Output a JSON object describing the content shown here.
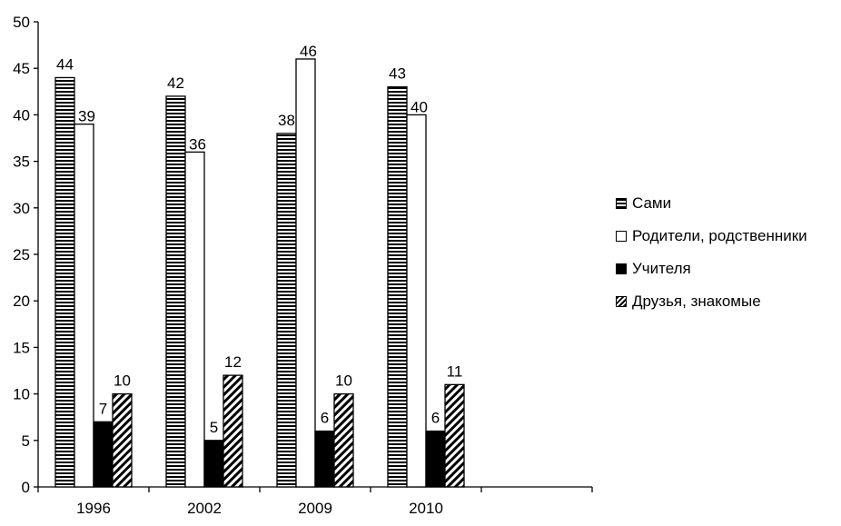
{
  "chart_data": {
    "type": "bar",
    "categories": [
      "1996",
      "2002",
      "2009",
      "2010",
      ""
    ],
    "series": [
      {
        "name": "Сами",
        "values": [
          44,
          42,
          38,
          43,
          null
        ],
        "pattern": "hstripe"
      },
      {
        "name": "Родители, родственники",
        "values": [
          39,
          36,
          46,
          40,
          null
        ],
        "pattern": "white"
      },
      {
        "name": "Учителя",
        "values": [
          7,
          5,
          6,
          6,
          null
        ],
        "pattern": "black"
      },
      {
        "name": "Друзья, знакомые",
        "values": [
          10,
          12,
          10,
          11,
          null
        ],
        "pattern": "diag"
      }
    ],
    "ylim": [
      0,
      50
    ],
    "yticks": [
      0,
      5,
      10,
      15,
      20,
      25,
      30,
      35,
      40,
      45,
      50
    ],
    "title": "",
    "xlabel": "",
    "ylabel": "",
    "grid": false,
    "legend_position": "right"
  }
}
